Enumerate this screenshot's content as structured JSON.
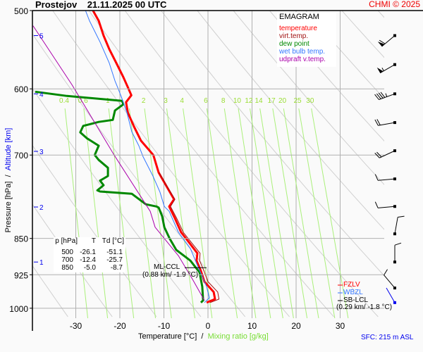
{
  "chart_data": {
    "type": "line",
    "diagram": "emagram",
    "title": "Prostejov",
    "datetime": "21.11.2025 00 UTC",
    "copyright": "CHMI © 2025",
    "xlabel": "Temperature [°C]",
    "xlabel_secondary": "Mixing ratio [g/kg]",
    "ylabel": "Pressure [hPa]",
    "ylabel_secondary": "Altitude [km]",
    "ylabel_separator": "/",
    "xlabel_separator": "/",
    "xlim": [
      -40,
      40
    ],
    "ylim": [
      1050,
      500
    ],
    "y_scale": "log",
    "grid": true,
    "x_ticks": [
      -30,
      -20,
      -10,
      0,
      10,
      20,
      30
    ],
    "y_ticks": [
      500,
      600,
      700,
      850,
      925,
      1000
    ],
    "altitude_ticks": [
      {
        "km": "1",
        "p": 898
      },
      {
        "km": "2",
        "p": 790
      },
      {
        "km": "3",
        "p": 694
      },
      {
        "km": "4",
        "p": 607
      },
      {
        "km": "5",
        "p": 530
      }
    ],
    "mixing_ratio_lines": [
      "0.4",
      "0.6",
      "1",
      "1.5",
      "2",
      "3",
      "4",
      "6",
      "8",
      "10",
      "12",
      "14",
      "17",
      "20",
      "25",
      "30"
    ],
    "legend": {
      "heading": "EMAGRAM",
      "placement": "top-right",
      "items": [
        {
          "label": "temperature",
          "color": "#ff0000"
        },
        {
          "label": "virt.temp.",
          "color": "#a01010"
        },
        {
          "label": "dew point",
          "color": "#008800"
        },
        {
          "label": "wet bulb temp.",
          "color": "#3377ff"
        },
        {
          "label": "udpraft v.temp.",
          "color": "#aa00aa"
        }
      ]
    },
    "series": [
      {
        "name": "temperature",
        "color": "#ff0000",
        "points": [
          [
            500,
            -26.1
          ],
          [
            512,
            -24.8
          ],
          [
            530,
            -23.7
          ],
          [
            547,
            -22.4
          ],
          [
            565,
            -20.8
          ],
          [
            584,
            -19.2
          ],
          [
            599,
            -18.1
          ],
          [
            609,
            -17.4
          ],
          [
            619,
            -18.6
          ],
          [
            634,
            -18.2
          ],
          [
            655,
            -16.8
          ],
          [
            677,
            -15.2
          ],
          [
            700,
            -12.4
          ],
          [
            729,
            -11.2
          ],
          [
            753,
            -9.4
          ],
          [
            776,
            -7.7
          ],
          [
            789,
            -8.8
          ],
          [
            811,
            -7.5
          ],
          [
            838,
            -6.1
          ],
          [
            850,
            -5.0
          ],
          [
            880,
            -2.4
          ],
          [
            895,
            -2.6
          ],
          [
            917,
            -1.6
          ],
          [
            940,
            -0.8
          ],
          [
            963,
            1.3
          ],
          [
            979,
            1.6
          ],
          [
            987,
            -0.3
          ]
        ]
      },
      {
        "name": "virt.temp.",
        "color": "#a01010",
        "points": [
          [
            729,
            -11.1
          ],
          [
            753,
            -9.3
          ],
          [
            776,
            -7.5
          ],
          [
            789,
            -8.5
          ],
          [
            811,
            -7.1
          ],
          [
            838,
            -5.6
          ],
          [
            850,
            -4.5
          ],
          [
            880,
            -1.8
          ],
          [
            895,
            -1.9
          ],
          [
            917,
            -0.9
          ],
          [
            940,
            0.0
          ],
          [
            963,
            2.2
          ],
          [
            979,
            2.5
          ],
          [
            987,
            0.5
          ]
        ]
      },
      {
        "name": "dew point",
        "color": "#008800",
        "points": [
          [
            604,
            -39.2
          ],
          [
            610,
            -32.0
          ],
          [
            617,
            -19.5
          ],
          [
            622,
            -19.2
          ],
          [
            631,
            -21.1
          ],
          [
            645,
            -21.6
          ],
          [
            648,
            -24.8
          ],
          [
            654,
            -28.3
          ],
          [
            664,
            -29.0
          ],
          [
            673,
            -27.5
          ],
          [
            685,
            -24.8
          ],
          [
            700,
            -25.7
          ],
          [
            708,
            -24.8
          ],
          [
            721,
            -22.7
          ],
          [
            735,
            -22.7
          ],
          [
            743,
            -24.5
          ],
          [
            751,
            -23.7
          ],
          [
            760,
            -25.1
          ],
          [
            762,
            -24.5
          ],
          [
            766,
            -17.3
          ],
          [
            785,
            -14.1
          ],
          [
            789,
            -11.7
          ],
          [
            791,
            -11.2
          ],
          [
            807,
            -10.4
          ],
          [
            828,
            -9.9
          ],
          [
            850,
            -8.7
          ],
          [
            873,
            -7.2
          ],
          [
            895,
            -4.0
          ],
          [
            920,
            -1.9
          ],
          [
            951,
            -1.3
          ],
          [
            982,
            -1.1
          ],
          [
            987,
            -1.6
          ]
        ]
      },
      {
        "name": "wet bulb temp.",
        "color": "#3377ff",
        "points": [
          [
            500,
            -27.8
          ],
          [
            512,
            -26.9
          ],
          [
            538,
            -24.5
          ],
          [
            565,
            -22.4
          ],
          [
            589,
            -21.1
          ],
          [
            601,
            -20.3
          ],
          [
            614,
            -19.5
          ],
          [
            634,
            -18.4
          ],
          [
            663,
            -17.3
          ],
          [
            685,
            -15.7
          ],
          [
            703,
            -14.7
          ],
          [
            735,
            -12.5
          ],
          [
            763,
            -10.9
          ],
          [
            789,
            -9.9
          ],
          [
            798,
            -8.8
          ],
          [
            838,
            -6.7
          ],
          [
            870,
            -4.0
          ],
          [
            905,
            -2.4
          ],
          [
            951,
            -0.3
          ],
          [
            976,
            0.3
          ],
          [
            987,
            -0.8
          ]
        ]
      },
      {
        "name": "udpraft v.temp.",
        "color": "#aa00aa",
        "points": [
          [
            518,
            -39.7
          ],
          [
            594,
            -30.9
          ],
          [
            624,
            -28.0
          ],
          [
            700,
            -21.3
          ],
          [
            798,
            -13.1
          ],
          [
            828,
            -12.0
          ],
          [
            885,
            -6.7
          ],
          [
            935,
            -3.5
          ],
          [
            982,
            -0.8
          ]
        ]
      }
    ],
    "levels_table": {
      "headers": [
        "p [hPa]",
        "T",
        "Td [°C]"
      ],
      "rows": [
        [
          "500",
          "-26.1",
          "-51.1"
        ],
        [
          "700",
          "-12.4",
          "-25.7"
        ],
        [
          "850",
          "-5.0",
          "-8.7"
        ]
      ]
    },
    "annotations": {
      "ml_ccl": {
        "label": "ML-CCL",
        "detail": "(0.88 km/ -1.9 °C)",
        "p": 898
      },
      "fzlv": {
        "label": "FZLV",
        "color": "#ff0000"
      },
      "wbzl": {
        "label": "WBZL",
        "color": "#3377ff"
      },
      "sb_lcl": {
        "label": "SB-LCL",
        "detail": "(0.29 km/ -1.8 °C)"
      },
      "sfc": "SFC: 215 m ASL"
    },
    "wind_barbs": [
      {
        "p": 530,
        "dir": 230,
        "kt": 60
      },
      {
        "p": 567,
        "dir": 240,
        "kt": 55
      },
      {
        "p": 607,
        "dir": 250,
        "kt": 45
      },
      {
        "p": 649,
        "dir": 260,
        "kt": 20
      },
      {
        "p": 693,
        "dir": 245,
        "kt": 20
      },
      {
        "p": 740,
        "dir": 265,
        "kt": 10
      },
      {
        "p": 789,
        "dir": 265,
        "kt": 10
      },
      {
        "p": 841,
        "dir": 10,
        "kt": 10
      },
      {
        "p": 898,
        "dir": 360,
        "kt": 10
      },
      {
        "p": 954,
        "dir": 320,
        "kt": 10
      },
      {
        "p": 987,
        "dir": 330,
        "kt": 0,
        "color": "#0000ee"
      }
    ],
    "colors": {
      "grid": "#b0b0b0",
      "adiabat": "#d0d0d0",
      "mixing_ratio": "#aaf07a",
      "mixing_label": "#99dd33",
      "altitude": "#0000ee"
    }
  }
}
